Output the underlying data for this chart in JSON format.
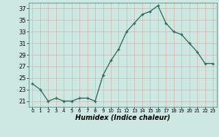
{
  "x": [
    0,
    1,
    2,
    3,
    4,
    5,
    6,
    7,
    8,
    9,
    10,
    11,
    12,
    13,
    14,
    15,
    16,
    17,
    18,
    19,
    20,
    21,
    22,
    23
  ],
  "y": [
    24,
    23,
    21,
    21.5,
    21,
    21,
    21.5,
    21.5,
    21,
    25.5,
    28,
    30,
    33,
    34.5,
    36,
    36.5,
    37.5,
    34.5,
    33,
    32.5,
    31,
    29.5,
    27.5,
    27.5
  ],
  "line_color": "#2e6b5e",
  "marker_color": "#2e6b5e",
  "bg_color": "#cce8e0",
  "grid_color": "#c0c8c0",
  "xlabel": "Humidex (Indice chaleur)",
  "ylim": [
    20,
    38
  ],
  "xlim": [
    -0.5,
    23.5
  ],
  "yticks": [
    21,
    23,
    25,
    27,
    29,
    31,
    33,
    35,
    37
  ],
  "xticks": [
    0,
    1,
    2,
    3,
    4,
    5,
    6,
    7,
    8,
    9,
    10,
    11,
    12,
    13,
    14,
    15,
    16,
    17,
    18,
    19,
    20,
    21,
    22,
    23
  ],
  "xtick_labels": [
    "0",
    "1",
    "2",
    "3",
    "4",
    "5",
    "6",
    "7",
    "8",
    "9",
    "10",
    "11",
    "12",
    "13",
    "14",
    "15",
    "16",
    "17",
    "18",
    "19",
    "20",
    "21",
    "22",
    "23"
  ],
  "linewidth": 1.0,
  "markersize": 2.5,
  "xlabel_fontsize": 7,
  "ytick_fontsize": 6,
  "xtick_fontsize": 5
}
